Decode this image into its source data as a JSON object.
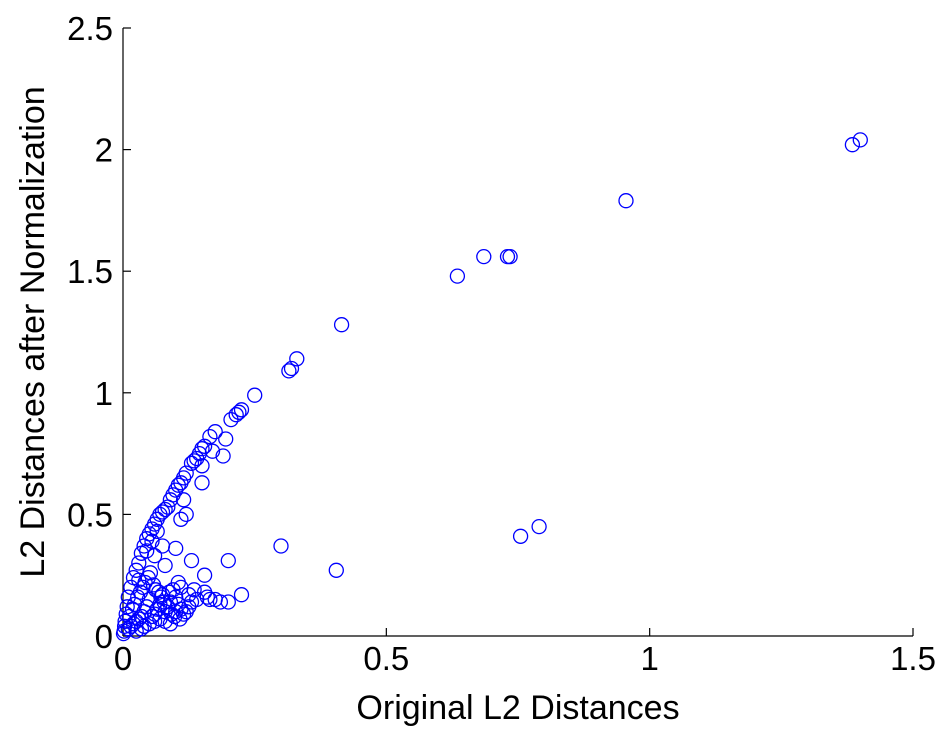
{
  "chart_data": {
    "type": "scatter",
    "title": "",
    "xlabel": "Original L2 Distances",
    "ylabel": "L2 Distances after Normalization",
    "xlim": [
      0,
      1.5
    ],
    "ylim": [
      0,
      2.5
    ],
    "xticks": [
      0,
      0.5,
      1,
      1.5
    ],
    "xtick_labels": [
      "0",
      "0.5",
      "1",
      "1.5"
    ],
    "yticks": [
      0,
      0.5,
      1,
      1.5,
      2,
      2.5
    ],
    "ytick_labels": [
      "0",
      "0.5",
      "1",
      "1.5",
      "2",
      "2.5"
    ],
    "grid": false,
    "marker": "circle-open",
    "color": "#0000ff",
    "series": [
      {
        "points": [
          [
            1.4,
            2.04
          ],
          [
            1.385,
            2.02
          ],
          [
            0.955,
            1.79
          ],
          [
            0.73,
            1.56
          ],
          [
            0.735,
            1.56
          ],
          [
            0.685,
            1.56
          ],
          [
            0.635,
            1.48
          ],
          [
            0.415,
            1.28
          ],
          [
            0.33,
            1.14
          ],
          [
            0.315,
            1.09
          ],
          [
            0.32,
            1.1
          ],
          [
            0.79,
            0.45
          ],
          [
            0.755,
            0.41
          ],
          [
            0.3,
            0.37
          ],
          [
            0.405,
            0.27
          ],
          [
            0.25,
            0.99
          ],
          [
            0.225,
            0.93
          ],
          [
            0.22,
            0.92
          ],
          [
            0.215,
            0.91
          ],
          [
            0.205,
            0.89
          ],
          [
            0.195,
            0.81
          ],
          [
            0.19,
            0.74
          ],
          [
            0.175,
            0.84
          ],
          [
            0.165,
            0.82
          ],
          [
            0.17,
            0.76
          ],
          [
            0.155,
            0.78
          ],
          [
            0.15,
            0.77
          ],
          [
            0.145,
            0.75
          ],
          [
            0.14,
            0.73
          ],
          [
            0.135,
            0.72
          ],
          [
            0.13,
            0.71
          ],
          [
            0.15,
            0.7
          ],
          [
            0.12,
            0.67
          ],
          [
            0.115,
            0.65
          ],
          [
            0.11,
            0.63
          ],
          [
            0.105,
            0.62
          ],
          [
            0.1,
            0.6
          ],
          [
            0.115,
            0.56
          ],
          [
            0.095,
            0.58
          ],
          [
            0.09,
            0.56
          ],
          [
            0.085,
            0.53
          ],
          [
            0.08,
            0.52
          ],
          [
            0.075,
            0.51
          ],
          [
            0.07,
            0.5
          ],
          [
            0.065,
            0.48
          ],
          [
            0.06,
            0.46
          ],
          [
            0.055,
            0.44
          ],
          [
            0.05,
            0.42
          ],
          [
            0.045,
            0.4
          ],
          [
            0.04,
            0.37
          ],
          [
            0.035,
            0.34
          ],
          [
            0.03,
            0.3
          ],
          [
            0.025,
            0.27
          ],
          [
            0.02,
            0.24
          ],
          [
            0.015,
            0.2
          ],
          [
            0.01,
            0.16
          ],
          [
            0.008,
            0.12
          ],
          [
            0.006,
            0.09
          ],
          [
            0.004,
            0.06
          ],
          [
            0.003,
            0.04
          ],
          [
            0.002,
            0.02
          ],
          [
            0.001,
            0.01
          ],
          [
            0.15,
            0.63
          ],
          [
            0.12,
            0.5
          ],
          [
            0.11,
            0.48
          ],
          [
            0.065,
            0.43
          ],
          [
            0.055,
            0.39
          ],
          [
            0.06,
            0.33
          ],
          [
            0.045,
            0.35
          ],
          [
            0.03,
            0.23
          ],
          [
            0.1,
            0.36
          ],
          [
            0.075,
            0.37
          ],
          [
            0.08,
            0.29
          ],
          [
            0.105,
            0.22
          ],
          [
            0.13,
            0.31
          ],
          [
            0.155,
            0.25
          ],
          [
            0.2,
            0.31
          ],
          [
            0.225,
            0.17
          ],
          [
            0.2,
            0.14
          ],
          [
            0.185,
            0.14
          ],
          [
            0.175,
            0.15
          ],
          [
            0.165,
            0.15
          ],
          [
            0.16,
            0.16
          ],
          [
            0.155,
            0.18
          ],
          [
            0.14,
            0.15
          ],
          [
            0.13,
            0.14
          ],
          [
            0.125,
            0.12
          ],
          [
            0.12,
            0.1
          ],
          [
            0.11,
            0.11
          ],
          [
            0.105,
            0.13
          ],
          [
            0.1,
            0.16
          ],
          [
            0.095,
            0.19
          ],
          [
            0.09,
            0.14
          ],
          [
            0.085,
            0.12
          ],
          [
            0.08,
            0.1
          ],
          [
            0.075,
            0.17
          ],
          [
            0.07,
            0.13
          ],
          [
            0.065,
            0.11
          ],
          [
            0.06,
            0.09
          ],
          [
            0.055,
            0.08
          ],
          [
            0.05,
            0.15
          ],
          [
            0.045,
            0.12
          ],
          [
            0.04,
            0.1
          ],
          [
            0.035,
            0.08
          ],
          [
            0.03,
            0.07
          ],
          [
            0.025,
            0.06
          ],
          [
            0.02,
            0.05
          ],
          [
            0.015,
            0.04
          ],
          [
            0.01,
            0.03
          ],
          [
            0.012,
            0.08
          ],
          [
            0.018,
            0.11
          ],
          [
            0.022,
            0.13
          ],
          [
            0.028,
            0.16
          ],
          [
            0.033,
            0.18
          ],
          [
            0.038,
            0.2
          ],
          [
            0.042,
            0.22
          ],
          [
            0.048,
            0.24
          ],
          [
            0.052,
            0.26
          ],
          [
            0.058,
            0.21
          ],
          [
            0.062,
            0.19
          ],
          [
            0.068,
            0.18
          ],
          [
            0.072,
            0.16
          ],
          [
            0.078,
            0.14
          ],
          [
            0.088,
            0.18
          ],
          [
            0.092,
            0.09
          ],
          [
            0.098,
            0.08
          ],
          [
            0.108,
            0.07
          ],
          [
            0.115,
            0.09
          ],
          [
            0.125,
            0.17
          ],
          [
            0.135,
            0.19
          ],
          [
            0.05,
            0.05
          ],
          [
            0.04,
            0.04
          ],
          [
            0.035,
            0.03
          ],
          [
            0.025,
            0.02
          ],
          [
            0.06,
            0.06
          ],
          [
            0.07,
            0.07
          ],
          [
            0.08,
            0.06
          ],
          [
            0.09,
            0.05
          ],
          [
            0.1,
            0.1
          ],
          [
            0.11,
            0.2
          ]
        ]
      }
    ]
  }
}
